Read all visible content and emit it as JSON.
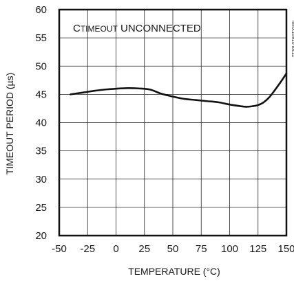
{
  "chart_data": {
    "type": "line",
    "title": "",
    "annotation": {
      "prefix": "C",
      "subscript": "TIMEOUT",
      "suffix": " UNCONNECTED"
    },
    "figure_id": "MAX16910 toc11",
    "xlabel": "TEMPERATURE (°C)",
    "ylabel": "TIMEOUT PERIOD (µs)",
    "xlim": [
      -50,
      150
    ],
    "ylim": [
      20,
      60
    ],
    "xticks": [
      -50,
      -25,
      0,
      25,
      50,
      75,
      100,
      125,
      150
    ],
    "xtick_labels": [
      "-50",
      "-25",
      "0",
      "25",
      "50",
      "75",
      "100",
      "125",
      "150"
    ],
    "yticks": [
      20,
      25,
      30,
      35,
      40,
      45,
      50,
      55,
      60
    ],
    "ytick_labels": [
      "20",
      "25",
      "30",
      "35",
      "40",
      "45",
      "50",
      "55",
      "60"
    ],
    "grid": true,
    "series": [
      {
        "color": "#111111",
        "x": [
          -40,
          -30,
          -20,
          -10,
          0,
          10,
          20,
          30,
          40,
          50,
          60,
          70,
          80,
          90,
          100,
          110,
          115,
          120,
          125,
          130,
          135,
          140,
          145,
          150
        ],
        "y": [
          45.0,
          45.3,
          45.6,
          45.85,
          46.0,
          46.1,
          46.05,
          45.85,
          45.1,
          44.6,
          44.2,
          44.0,
          43.8,
          43.6,
          43.2,
          42.9,
          42.8,
          42.9,
          43.1,
          43.6,
          44.5,
          45.8,
          47.2,
          48.7
        ]
      }
    ]
  }
}
